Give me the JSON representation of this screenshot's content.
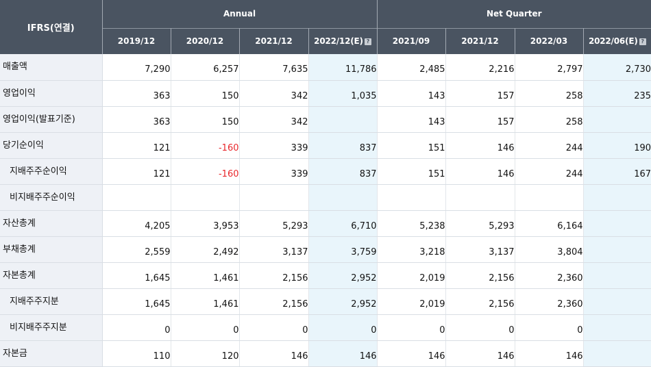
{
  "table": {
    "corner_label": "IFRS(연결)",
    "groups": [
      "Annual",
      "Net Quarter"
    ],
    "periods": [
      "2019/12",
      "2020/12",
      "2021/12",
      "2022/12(E)",
      "2021/09",
      "2021/12",
      "2022/03",
      "2022/06(E)"
    ],
    "info_icon": "info-icon",
    "rows": [
      {
        "label": "매출액",
        "values": [
          "7,290",
          "6,257",
          "7,635",
          "11,786",
          "2,485",
          "2,216",
          "2,797",
          "2,730"
        ]
      },
      {
        "label": "영업이익",
        "values": [
          "363",
          "150",
          "342",
          "1,035",
          "143",
          "157",
          "258",
          "235"
        ]
      },
      {
        "label": "영업이익(발표기준)",
        "values": [
          "363",
          "150",
          "342",
          "",
          "143",
          "157",
          "258",
          ""
        ]
      },
      {
        "label": "당기순이익",
        "values": [
          "121",
          "-160",
          "339",
          "837",
          "151",
          "146",
          "244",
          "190"
        ]
      },
      {
        "label": "지배주주순이익",
        "values": [
          "121",
          "-160",
          "339",
          "837",
          "151",
          "146",
          "244",
          "167"
        ]
      },
      {
        "label": "비지배주주순이익",
        "values": [
          "",
          "",
          "",
          "",
          "",
          "",
          "",
          ""
        ]
      },
      {
        "label": "자산총계",
        "values": [
          "4,205",
          "3,953",
          "5,293",
          "6,710",
          "5,238",
          "5,293",
          "6,164",
          ""
        ]
      },
      {
        "label": "부채총계",
        "values": [
          "2,559",
          "2,492",
          "3,137",
          "3,759",
          "3,218",
          "3,137",
          "3,804",
          ""
        ]
      },
      {
        "label": "자본총계",
        "values": [
          "1,645",
          "1,461",
          "2,156",
          "2,952",
          "2,019",
          "2,156",
          "2,360",
          ""
        ]
      },
      {
        "label": "지배주주지분",
        "values": [
          "1,645",
          "1,461",
          "2,156",
          "2,952",
          "2,019",
          "2,156",
          "2,360",
          ""
        ]
      },
      {
        "label": "비지배주주지분",
        "values": [
          "0",
          "0",
          "0",
          "0",
          "0",
          "0",
          "0",
          ""
        ]
      },
      {
        "label": "자본금",
        "values": [
          "110",
          "120",
          "146",
          "146",
          "146",
          "146",
          "146",
          ""
        ]
      }
    ]
  },
  "colors": {
    "header_bg": "#4a5461",
    "label_bg": "#eef1f6",
    "estimate_bg": "#e9f5fb",
    "negative": "#e8262b"
  }
}
